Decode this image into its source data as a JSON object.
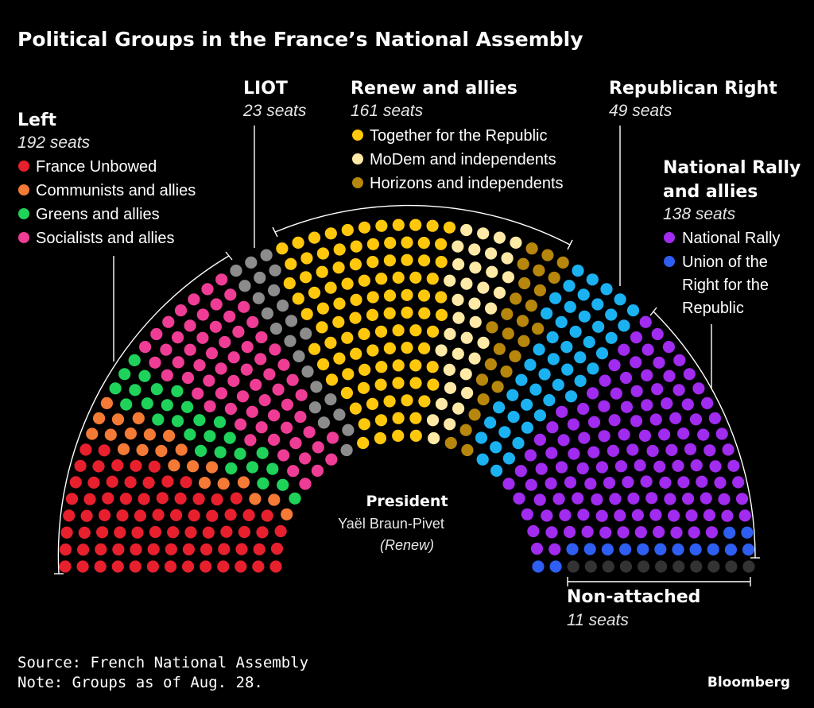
{
  "chart_data": {
    "type": "parliament",
    "title": "Political Groups in the France’s National Assembly",
    "total_seats": 577,
    "groups": [
      {
        "key": "left",
        "name": "Left",
        "seats_label": "192 seats",
        "seats": 192,
        "parties": [
          {
            "name": "France Unbowed",
            "seats": 75,
            "color": "#e8202d"
          },
          {
            "name": "Communists and allies",
            "seats": 22,
            "color": "#f47a35"
          },
          {
            "name": "Greens and allies",
            "seats": 28,
            "color": "#1fd35a"
          },
          {
            "name": "Socialists and allies",
            "seats": 67,
            "color": "#ef3d96"
          }
        ]
      },
      {
        "key": "liot",
        "name": "LIOT",
        "seats_label": "23 seats",
        "seats": 23,
        "parties": [
          {
            "name": "LIOT",
            "seats": 23,
            "color": "#8c8c8c"
          }
        ]
      },
      {
        "key": "renew",
        "name": "Renew and allies",
        "seats_label": "161 seats",
        "seats": 161,
        "parties": [
          {
            "name": "Together for the Republic",
            "seats": 98,
            "color": "#ffc80d"
          },
          {
            "name": "MoDem and independents",
            "seats": 36,
            "color": "#ffe9a6"
          },
          {
            "name": "Horizons and independents",
            "seats": 27,
            "color": "#b7860c"
          }
        ]
      },
      {
        "key": "right",
        "name": "Republican Right",
        "seats_label": "49 seats",
        "seats": 49,
        "parties": [
          {
            "name": "Republican Right",
            "seats": 49,
            "color": "#1bb2f2"
          }
        ]
      },
      {
        "key": "rn",
        "name": "National Rally",
        "name2": "and allies",
        "seats_label": "138 seats",
        "seats": 138,
        "parties": [
          {
            "name": "National Rally",
            "seats": 123,
            "color": "#a12bef"
          },
          {
            "name": "Union of the Right for the Republic",
            "seats": 15,
            "color": "#2e5ef2",
            "label_lines": [
              "Union of the",
              "Right for the",
              "Republic"
            ]
          }
        ]
      },
      {
        "key": "na",
        "name": "Non-attached",
        "seats_label": "11 seats",
        "seats": 11,
        "parties": [
          {
            "name": "Non-attached",
            "seats": 11,
            "color": "#333333"
          }
        ]
      }
    ],
    "president": {
      "label": "President",
      "name": "Yaël Braun-Pivet",
      "party": "(Renew)"
    }
  },
  "footer": {
    "source": "Source: French National Assembly",
    "note": "Note: Groups as of Aug. 28.",
    "brand": "Bloomberg"
  }
}
